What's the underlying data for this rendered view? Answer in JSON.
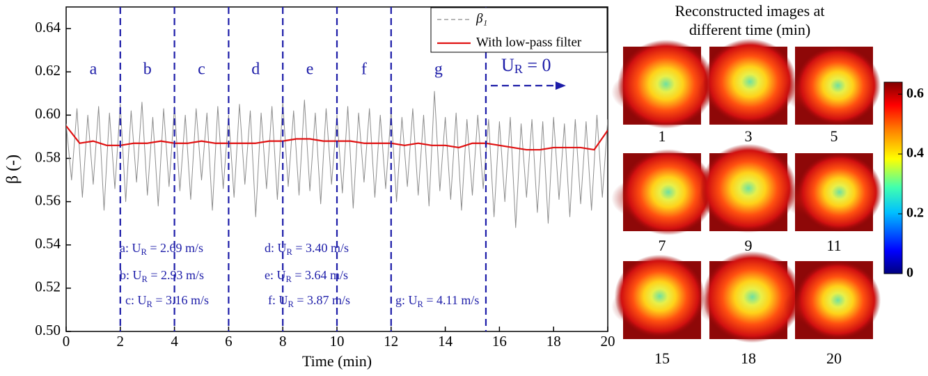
{
  "chart_data": {
    "type": "line",
    "x_label": "Time (min)",
    "y_label": "β (-)",
    "xlim": [
      0,
      20
    ],
    "ylim": [
      0.5,
      0.65
    ],
    "xticks": [
      0,
      2,
      4,
      6,
      8,
      10,
      12,
      14,
      16,
      18,
      20
    ],
    "yticks": [
      {
        "value": 0.5,
        "label": "0.50"
      },
      0.52,
      0.54,
      0.56,
      0.58,
      {
        "value": 0.6,
        "label": "0.60"
      },
      0.62,
      0.64
    ],
    "legend": "upper right",
    "series": [
      {
        "name": "β₁",
        "color": "#8c8c8c",
        "dash": true,
        "x": [
          0,
          0.2,
          0.4,
          0.6,
          0.8,
          1,
          1.2,
          1.4,
          1.6,
          1.8,
          2,
          2.2,
          2.4,
          2.6,
          2.8,
          3,
          3.2,
          3.4,
          3.6,
          3.8,
          4,
          4.2,
          4.4,
          4.6,
          4.8,
          5,
          5.2,
          5.4,
          5.6,
          5.8,
          6,
          6.2,
          6.4,
          6.6,
          6.8,
          7,
          7.2,
          7.4,
          7.6,
          7.8,
          8,
          8.2,
          8.4,
          8.6,
          8.8,
          9,
          9.2,
          9.4,
          9.6,
          9.8,
          10,
          10.2,
          10.4,
          10.6,
          10.8,
          11,
          11.2,
          11.4,
          11.6,
          11.8,
          12,
          12.2,
          12.4,
          12.6,
          12.8,
          13,
          13.2,
          13.4,
          13.6,
          13.8,
          14,
          14.2,
          14.4,
          14.6,
          14.8,
          15,
          15.2,
          15.4,
          15.6,
          15.8,
          16,
          16.2,
          16.4,
          16.6,
          16.8,
          17,
          17.2,
          17.4,
          17.6,
          17.8,
          18,
          18.2,
          18.4,
          18.6,
          18.8,
          19,
          19.2,
          19.4,
          19.6,
          19.8,
          20
        ],
        "values": [
          0.596,
          0.57,
          0.603,
          0.562,
          0.6,
          0.568,
          0.604,
          0.556,
          0.601,
          0.566,
          0.605,
          0.56,
          0.602,
          0.569,
          0.606,
          0.563,
          0.599,
          0.558,
          0.603,
          0.567,
          0.604,
          0.565,
          0.6,
          0.561,
          0.603,
          0.57,
          0.601,
          0.556,
          0.604,
          0.566,
          0.6,
          0.562,
          0.605,
          0.568,
          0.602,
          0.553,
          0.601,
          0.566,
          0.604,
          0.561,
          0.606,
          0.567,
          0.602,
          0.563,
          0.607,
          0.565,
          0.601,
          0.559,
          0.603,
          0.568,
          0.6,
          0.564,
          0.604,
          0.557,
          0.601,
          0.569,
          0.603,
          0.562,
          0.6,
          0.566,
          0.602,
          0.56,
          0.599,
          0.567,
          0.603,
          0.563,
          0.6,
          0.558,
          0.611,
          0.565,
          0.599,
          0.561,
          0.601,
          0.556,
          0.598,
          0.563,
          0.6,
          0.566,
          0.598,
          0.553,
          0.597,
          0.56,
          0.599,
          0.548,
          0.596,
          0.562,
          0.598,
          0.555,
          0.597,
          0.55,
          0.599,
          0.561,
          0.596,
          0.553,
          0.598,
          0.559,
          0.597,
          0.556,
          0.6,
          0.562,
          0.598
        ]
      },
      {
        "name": "With low-pass filter",
        "color": "#e01010",
        "dash": false,
        "x": [
          0,
          0.5,
          1,
          1.5,
          2,
          2.5,
          3,
          3.5,
          4,
          4.5,
          5,
          5.5,
          6,
          6.5,
          7,
          7.5,
          8,
          8.5,
          9,
          9.5,
          10,
          10.5,
          11,
          11.5,
          12,
          12.5,
          13,
          13.5,
          14,
          14.5,
          15,
          15.5,
          16,
          16.5,
          17,
          17.5,
          18,
          18.5,
          19,
          19.5,
          20
        ],
        "values": [
          0.595,
          0.587,
          0.588,
          0.586,
          0.586,
          0.587,
          0.587,
          0.588,
          0.587,
          0.587,
          0.588,
          0.587,
          0.587,
          0.587,
          0.587,
          0.588,
          0.588,
          0.589,
          0.589,
          0.588,
          0.588,
          0.588,
          0.587,
          0.587,
          0.587,
          0.586,
          0.587,
          0.586,
          0.586,
          0.585,
          0.587,
          0.587,
          0.586,
          0.585,
          0.584,
          0.584,
          0.585,
          0.585,
          0.585,
          0.584,
          0.593
        ]
      }
    ],
    "regions": {
      "boundaries": [
        2,
        4,
        6,
        8,
        10,
        12,
        15.5
      ],
      "labels": [
        "a",
        "b",
        "c",
        "d",
        "e",
        "f",
        "g"
      ]
    },
    "off_label": {
      "pre": "U",
      "sub": "R",
      "post": " = 0"
    },
    "notes": [
      {
        "pre": "a: U",
        "sub": "R",
        "post": " = 2.69 m/s"
      },
      {
        "pre": "b: U",
        "sub": "R",
        "post": " = 2.93 m/s"
      },
      {
        "pre": "c: U",
        "sub": "R",
        "post": " = 3.16 m/s"
      },
      {
        "pre": "d: U",
        "sub": "R",
        "post": " = 3.40 m/s"
      },
      {
        "pre": "e: U",
        "sub": "R",
        "post": " = 3.64 m/s"
      },
      {
        "pre": "f: U",
        "sub": "R",
        "post": " = 3.87 m/s"
      },
      {
        "pre": "g: U",
        "sub": "R",
        "post": " = 4.11 m/s"
      }
    ]
  },
  "image_panel": {
    "title_lines": [
      "Reconstructed images at",
      "different time (min)"
    ],
    "labels": [
      "1",
      "3",
      "5",
      "7",
      "9",
      "11",
      "15",
      "18",
      "20"
    ],
    "colorbar": {
      "lim": [
        0,
        0.64
      ],
      "ticks": [
        0,
        0.2,
        0.4,
        0.6
      ]
    }
  }
}
